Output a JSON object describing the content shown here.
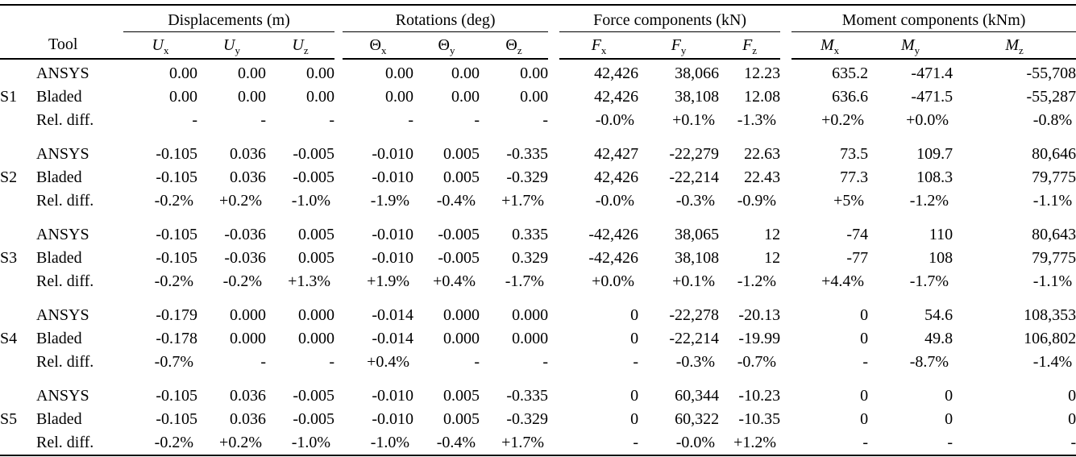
{
  "page": {
    "background": "#ffffff",
    "text_color": "#000000"
  },
  "table": {
    "tool_header": "Tool",
    "groups": [
      {
        "label": "Displacements (m)",
        "italic_base": true,
        "columns": [
          {
            "base": "U",
            "sub": "x"
          },
          {
            "base": "U",
            "sub": "y"
          },
          {
            "base": "U",
            "sub": "z"
          }
        ]
      },
      {
        "label": "Rotations (deg)",
        "italic_base": false,
        "columns": [
          {
            "base": "Θ",
            "sub": "x"
          },
          {
            "base": "Θ",
            "sub": "y"
          },
          {
            "base": "Θ",
            "sub": "z"
          }
        ]
      },
      {
        "label": "Force components (kN)",
        "italic_base": true,
        "columns": [
          {
            "base": "F",
            "sub": "x"
          },
          {
            "base": "F",
            "sub": "y"
          },
          {
            "base": "F",
            "sub": "z"
          }
        ]
      },
      {
        "label": "Moment components (kNm)",
        "italic_base": true,
        "columns": [
          {
            "base": "M",
            "sub": "x"
          },
          {
            "base": "M",
            "sub": "y"
          },
          {
            "base": "M",
            "sub": "z"
          }
        ]
      }
    ],
    "blocks": [
      {
        "case": "S1",
        "rows": [
          {
            "tool": "ANSYS",
            "values": [
              "0.00",
              "0.00",
              "0.00",
              "0.00",
              "0.00",
              "0.00",
              "42,426",
              "38,066",
              "12.23",
              "635.2",
              "-471.4",
              "-55,708"
            ]
          },
          {
            "tool": "Bladed",
            "values": [
              "0.00",
              "0.00",
              "0.00",
              "0.00",
              "0.00",
              "0.00",
              "42,426",
              "38,108",
              "12.08",
              "636.6",
              "-471.5",
              "-55,287"
            ]
          },
          {
            "tool": "Rel. diff.",
            "values": [
              "-",
              "-",
              "-",
              "-",
              "-",
              "-",
              "-0.0%",
              "+0.1%",
              "-1.3%",
              "+0.2%",
              "+0.0%",
              "-0.8%"
            ]
          }
        ]
      },
      {
        "case": "S2",
        "rows": [
          {
            "tool": "ANSYS",
            "values": [
              "-0.105",
              "0.036",
              "-0.005",
              "-0.010",
              "0.005",
              "-0.335",
              "42,427",
              "-22,279",
              "22.63",
              "73.5",
              "109.7",
              "80,646"
            ]
          },
          {
            "tool": "Bladed",
            "values": [
              "-0.105",
              "0.036",
              "-0.005",
              "-0.010",
              "0.005",
              "-0.329",
              "42,426",
              "-22,214",
              "22.43",
              "77.3",
              "108.3",
              "79,775"
            ]
          },
          {
            "tool": "Rel. diff.",
            "values": [
              "-0.2%",
              "+0.2%",
              "-1.0%",
              "-1.9%",
              "-0.4%",
              "+1.7%",
              "-0.0%",
              "-0.3%",
              "-0.9%",
              "+5%",
              "-1.2%",
              "-1.1%"
            ]
          }
        ]
      },
      {
        "case": "S3",
        "rows": [
          {
            "tool": "ANSYS",
            "values": [
              "-0.105",
              "-0.036",
              "0.005",
              "-0.010",
              "-0.005",
              "0.335",
              "-42,426",
              "38,065",
              "12",
              "-74",
              "110",
              "80,643"
            ]
          },
          {
            "tool": "Bladed",
            "values": [
              "-0.105",
              "-0.036",
              "0.005",
              "-0.010",
              "-0.005",
              "0.329",
              "-42,426",
              "38,108",
              "12",
              "-77",
              "108",
              "79,775"
            ]
          },
          {
            "tool": "Rel. diff.",
            "values": [
              "-0.2%",
              "-0.2%",
              "+1.3%",
              "+1.9%",
              "+0.4%",
              "-1.7%",
              "+0.0%",
              "+0.1%",
              "-1.2%",
              "+4.4%",
              "-1.7%",
              "-1.1%"
            ]
          }
        ]
      },
      {
        "case": "S4",
        "rows": [
          {
            "tool": "ANSYS",
            "values": [
              "-0.179",
              "0.000",
              "0.000",
              "-0.014",
              "0.000",
              "0.000",
              "0",
              "-22,278",
              "-20.13",
              "0",
              "54.6",
              "108,353"
            ]
          },
          {
            "tool": "Bladed",
            "values": [
              "-0.178",
              "0.000",
              "0.000",
              "-0.014",
              "0.000",
              "0.000",
              "0",
              "-22,214",
              "-19.99",
              "0",
              "49.8",
              "106,802"
            ]
          },
          {
            "tool": "Rel. diff.",
            "values": [
              "-0.7%",
              "-",
              "-",
              "+0.4%",
              "-",
              "-",
              "-",
              "-0.3%",
              "-0.7%",
              "-",
              "-8.7%",
              "-1.4%"
            ]
          }
        ]
      },
      {
        "case": "S5",
        "rows": [
          {
            "tool": "ANSYS",
            "values": [
              "-0.105",
              "0.036",
              "-0.005",
              "-0.010",
              "0.005",
              "-0.335",
              "0",
              "60,344",
              "-10.23",
              "0",
              "0",
              "0"
            ]
          },
          {
            "tool": "Bladed",
            "values": [
              "-0.105",
              "0.036",
              "-0.005",
              "-0.010",
              "0.005",
              "-0.329",
              "0",
              "60,322",
              "-10.35",
              "0",
              "0",
              "0"
            ]
          },
          {
            "tool": "Rel. diff.",
            "values": [
              "-0.2%",
              "+0.2%",
              "-1.0%",
              "-1.0%",
              "-0.4%",
              "+1.7%",
              "-",
              "-0.0%",
              "+1.2%",
              "-",
              "-",
              "-"
            ]
          }
        ]
      }
    ]
  }
}
